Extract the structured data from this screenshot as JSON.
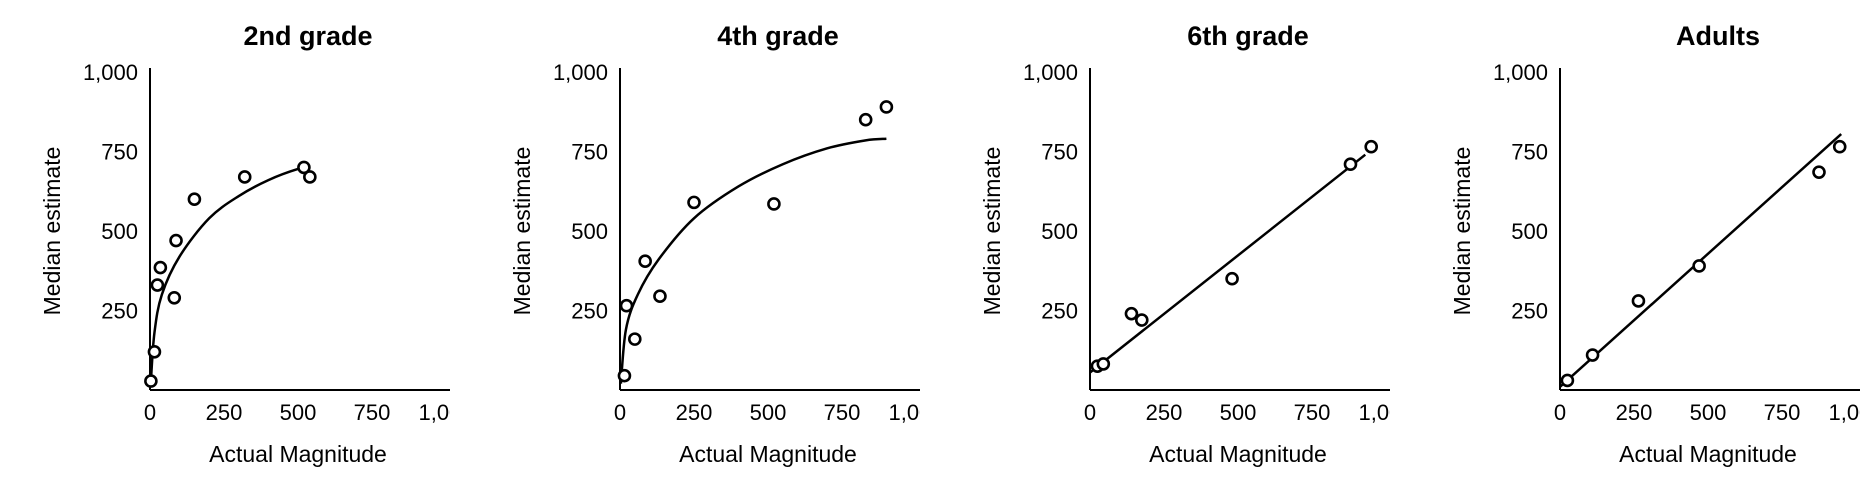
{
  "chart_data": [
    {
      "type": "scatter",
      "title": "2nd grade",
      "xlabel": "Actual Magnitude",
      "ylabel": "Median estimate",
      "xlim": [
        0,
        1000
      ],
      "ylim": [
        0,
        1000
      ],
      "xticks": [
        "0",
        "250",
        "500",
        "750",
        "1,000"
      ],
      "yticks": [
        "250",
        "500",
        "750",
        "1,000"
      ],
      "grid": false,
      "points": [
        [
          3,
          28
        ],
        [
          15,
          120
        ],
        [
          25,
          330
        ],
        [
          35,
          385
        ],
        [
          82,
          290
        ],
        [
          88,
          470
        ],
        [
          150,
          600
        ],
        [
          320,
          670
        ],
        [
          520,
          700
        ],
        [
          540,
          670
        ]
      ],
      "fit": "curve",
      "fit_points": [
        [
          3,
          28
        ],
        [
          15,
          180
        ],
        [
          40,
          300
        ],
        [
          100,
          420
        ],
        [
          200,
          540
        ],
        [
          300,
          610
        ],
        [
          400,
          660
        ],
        [
          500,
          695
        ],
        [
          540,
          700
        ]
      ]
    },
    {
      "type": "scatter",
      "title": "4th grade",
      "xlabel": "Actual Magnitude",
      "ylabel": "Median estimate",
      "xlim": [
        0,
        1000
      ],
      "ylim": [
        0,
        1000
      ],
      "xticks": [
        "0",
        "250",
        "500",
        "750",
        "1,000"
      ],
      "yticks": [
        "250",
        "500",
        "750",
        "1,000"
      ],
      "grid": false,
      "points": [
        [
          15,
          45
        ],
        [
          22,
          265
        ],
        [
          50,
          160
        ],
        [
          85,
          405
        ],
        [
          135,
          295
        ],
        [
          250,
          590
        ],
        [
          520,
          585
        ],
        [
          830,
          850
        ],
        [
          900,
          890
        ]
      ],
      "fit": "curve",
      "fit_points": [
        [
          3,
          20
        ],
        [
          20,
          190
        ],
        [
          60,
          300
        ],
        [
          130,
          410
        ],
        [
          250,
          540
        ],
        [
          400,
          640
        ],
        [
          550,
          710
        ],
        [
          700,
          760
        ],
        [
          830,
          785
        ],
        [
          900,
          790
        ]
      ]
    },
    {
      "type": "scatter",
      "title": "6th grade",
      "xlabel": "Actual Magnitude",
      "ylabel": "Median estimate",
      "xlim": [
        0,
        1000
      ],
      "ylim": [
        0,
        1000
      ],
      "xticks": [
        "0",
        "250",
        "500",
        "750",
        "1,000"
      ],
      "yticks": [
        "250",
        "500",
        "750",
        "1,000"
      ],
      "grid": false,
      "points": [
        [
          25,
          75
        ],
        [
          45,
          82
        ],
        [
          140,
          240
        ],
        [
          175,
          220
        ],
        [
          480,
          350
        ],
        [
          880,
          710
        ],
        [
          950,
          765
        ]
      ],
      "fit": "linear",
      "fit_points": [
        [
          0,
          55
        ],
        [
          930,
          740
        ]
      ]
    },
    {
      "type": "scatter",
      "title": "Adults",
      "xlabel": "Actual Magnitude",
      "ylabel": "Median estimate",
      "xlim": [
        0,
        1000
      ],
      "ylim": [
        0,
        1000
      ],
      "xticks": [
        "0",
        "250",
        "500",
        "750",
        "1,000"
      ],
      "yticks": [
        "250",
        "500",
        "750",
        "1,000"
      ],
      "grid": false,
      "points": [
        [
          25,
          30
        ],
        [
          110,
          110
        ],
        [
          265,
          280
        ],
        [
          470,
          390
        ],
        [
          875,
          685
        ],
        [
          945,
          765
        ]
      ],
      "fit": "linear",
      "fit_points": [
        [
          0,
          10
        ],
        [
          950,
          805
        ]
      ]
    }
  ]
}
